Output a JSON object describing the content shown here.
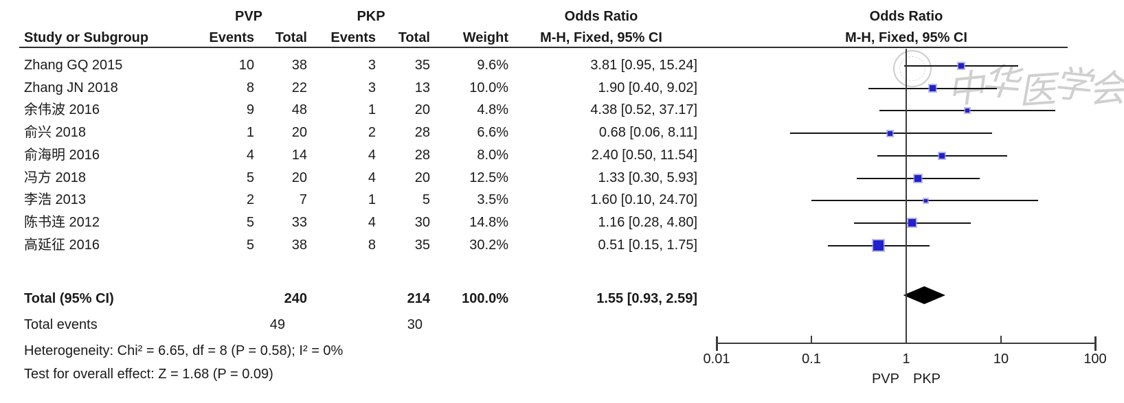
{
  "header": {
    "group1": "PVP",
    "group2": "PKP",
    "study": "Study or Subgroup",
    "events": "Events",
    "total": "Total",
    "weight": "Weight",
    "or_title": "Odds Ratio",
    "or_sub": "M-H, Fixed, 95% CI"
  },
  "watermark": {
    "text": "中华医学会"
  },
  "colors": {
    "square": "#2222cc",
    "square_halo": "#9494dc",
    "diamond": "#000000",
    "ci_line": "#141414",
    "axis": "#3a3a3a",
    "text": "#1a1a1a",
    "watermark": "#cfcfcf"
  },
  "chart_data": {
    "type": "scatter",
    "subtype": "forest_plot_meta_analysis",
    "title": "Odds Ratio",
    "effect_measure": "M-H, Fixed, 95% CI",
    "x_scale": "log",
    "x_range": [
      0.01,
      100
    ],
    "x_ticks": [
      "0.01",
      "0.1",
      "1",
      "10",
      "100"
    ],
    "axis_footer_left": "PVP",
    "axis_footer_right": "PKP",
    "studies": [
      {
        "name": "Zhang GQ 2015",
        "events1": "10",
        "total1": "38",
        "events2": "3",
        "total2": "35",
        "weight": "9.6%",
        "weight_pct": 9.6,
        "or": 3.81,
        "ci_low": 0.95,
        "ci_high": 15.24,
        "or_label": "3.81 [0.95, 15.24]"
      },
      {
        "name": "Zhang JN 2018",
        "events1": "8",
        "total1": "22",
        "events2": "3",
        "total2": "13",
        "weight": "10.0%",
        "weight_pct": 10.0,
        "or": 1.9,
        "ci_low": 0.4,
        "ci_high": 9.02,
        "or_label": "1.90 [0.40, 9.02]"
      },
      {
        "name": "余伟波 2016",
        "events1": "9",
        "total1": "48",
        "events2": "1",
        "total2": "20",
        "weight": "4.8%",
        "weight_pct": 4.8,
        "or": 4.38,
        "ci_low": 0.52,
        "ci_high": 37.17,
        "or_label": "4.38 [0.52, 37.17]"
      },
      {
        "name": "俞兴 2018",
        "events1": "1",
        "total1": "20",
        "events2": "2",
        "total2": "28",
        "weight": "6.6%",
        "weight_pct": 6.6,
        "or": 0.68,
        "ci_low": 0.06,
        "ci_high": 8.11,
        "or_label": "0.68 [0.06, 8.11]"
      },
      {
        "name": "俞海明 2016",
        "events1": "4",
        "total1": "14",
        "events2": "4",
        "total2": "28",
        "weight": "8.0%",
        "weight_pct": 8.0,
        "or": 2.4,
        "ci_low": 0.5,
        "ci_high": 11.54,
        "or_label": "2.40 [0.50, 11.54]"
      },
      {
        "name": "冯方 2018",
        "events1": "5",
        "total1": "20",
        "events2": "4",
        "total2": "20",
        "weight": "12.5%",
        "weight_pct": 12.5,
        "or": 1.33,
        "ci_low": 0.3,
        "ci_high": 5.93,
        "or_label": "1.33 [0.30, 5.93]"
      },
      {
        "name": "李浩 2013",
        "events1": "2",
        "total1": "7",
        "events2": "1",
        "total2": "5",
        "weight": "3.5%",
        "weight_pct": 3.5,
        "or": 1.6,
        "ci_low": 0.1,
        "ci_high": 24.7,
        "or_label": "1.60 [0.10, 24.70]"
      },
      {
        "name": "陈书连 2012",
        "events1": "5",
        "total1": "33",
        "events2": "4",
        "total2": "30",
        "weight": "14.8%",
        "weight_pct": 14.8,
        "or": 1.16,
        "ci_low": 0.28,
        "ci_high": 4.8,
        "or_label": "1.16 [0.28, 4.80]"
      },
      {
        "name": "高延征 2016",
        "events1": "5",
        "total1": "38",
        "events2": "8",
        "total2": "35",
        "weight": "30.2%",
        "weight_pct": 30.2,
        "or": 0.51,
        "ci_low": 0.15,
        "ci_high": 1.75,
        "or_label": "0.51 [0.15, 1.75]"
      }
    ],
    "total": {
      "label": "Total (95% CI)",
      "total1": "240",
      "total2": "214",
      "weight": "100.0%",
      "or": 1.55,
      "ci_low": 0.93,
      "ci_high": 2.59,
      "or_label": "1.55 [0.93, 2.59]"
    },
    "total_events": {
      "label": "Total events",
      "events1": "49",
      "events2": "30"
    },
    "heterogeneity": "Heterogeneity: Chi² = 6.65, df = 8 (P = 0.58); I² = 0%",
    "overall_effect": "Test for overall effect: Z = 1.68 (P = 0.09)"
  }
}
